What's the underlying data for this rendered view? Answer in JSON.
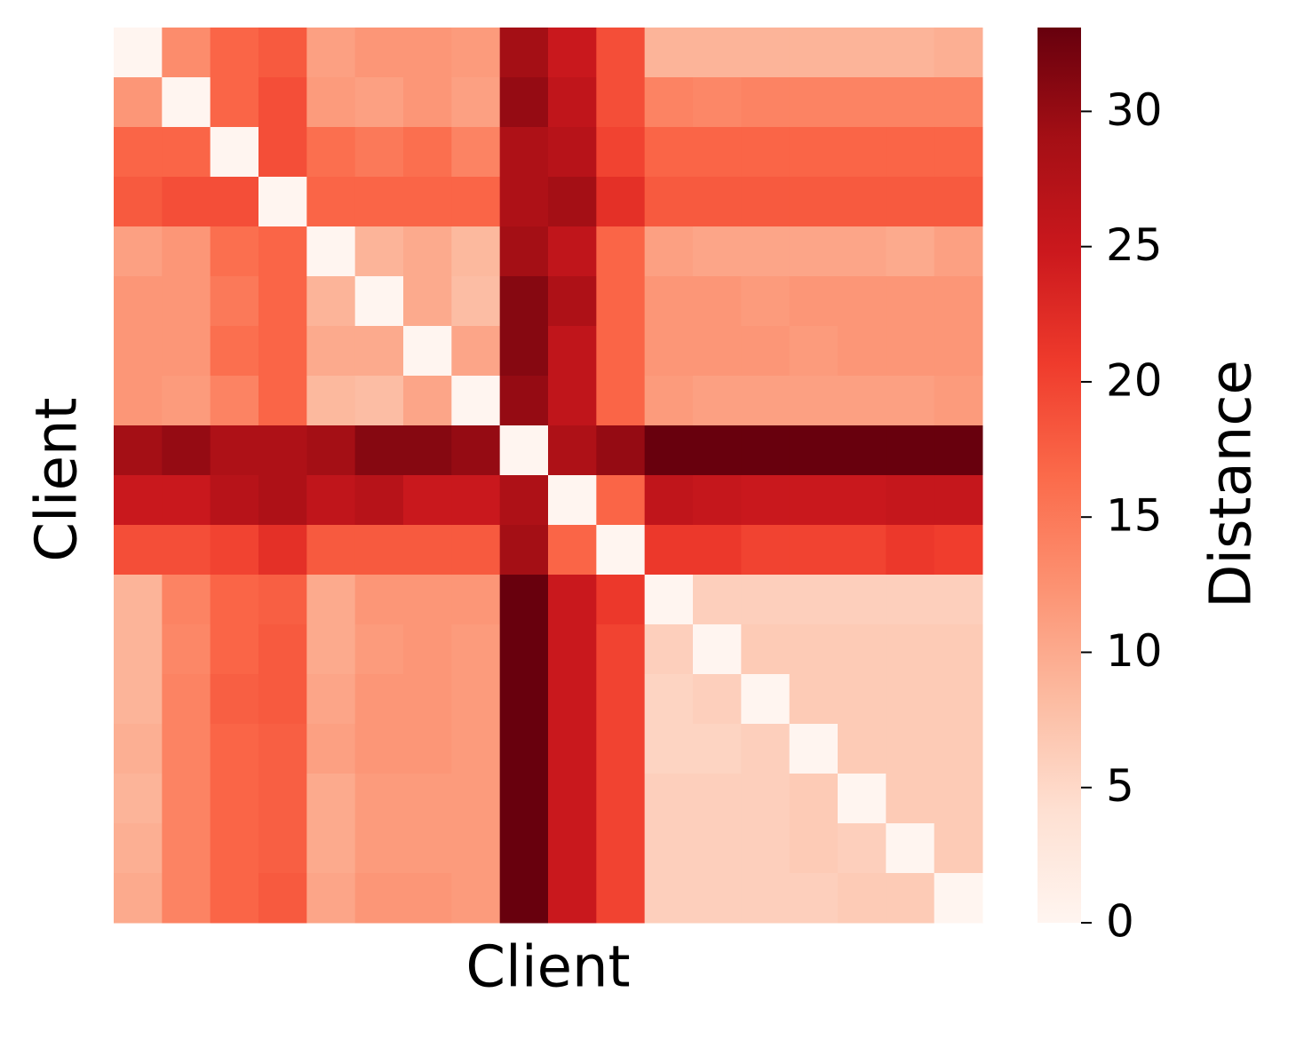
{
  "chart_data": {
    "type": "heatmap",
    "xlabel": "Client",
    "ylabel": "Client",
    "colorbar_label": "Distance",
    "z": [
      [
        0,
        13,
        17,
        18,
        11,
        12,
        12,
        11.5,
        29,
        25,
        19,
        9,
        9,
        9,
        9,
        9,
        9,
        9.5
      ],
      [
        12,
        0,
        17,
        19,
        11.5,
        11,
        12,
        11,
        30,
        26,
        19,
        14,
        13.5,
        14,
        14,
        14,
        14,
        14
      ],
      [
        17,
        17,
        0,
        19,
        16,
        15,
        16,
        14,
        28,
        27,
        20,
        17,
        17,
        17,
        17,
        17,
        17,
        17
      ],
      [
        18,
        19,
        19,
        0,
        17,
        17,
        17,
        17,
        28,
        29,
        22,
        18,
        18,
        18,
        18,
        18,
        18,
        18
      ],
      [
        11,
        12,
        16,
        17,
        0,
        9,
        10,
        8.5,
        29,
        26,
        17,
        11,
        10.5,
        10.5,
        10.5,
        10.5,
        10,
        11
      ],
      [
        12,
        12,
        15,
        17,
        9,
        0,
        10,
        8,
        31,
        28,
        17,
        12,
        12,
        11.5,
        12,
        12,
        12,
        12
      ],
      [
        12,
        12,
        16,
        17,
        10,
        10,
        0,
        10.5,
        31,
        26,
        17,
        12,
        12,
        12,
        11.5,
        12,
        12,
        12
      ],
      [
        12,
        11.5,
        14,
        17,
        8.5,
        8,
        10.5,
        0,
        30,
        26,
        17,
        11.5,
        11,
        11,
        11,
        11,
        11,
        11.5
      ],
      [
        29,
        30,
        28,
        28,
        29,
        31,
        31,
        30,
        0,
        28,
        30,
        33,
        33,
        33,
        33,
        33,
        33,
        33
      ],
      [
        25,
        25,
        27,
        28,
        26,
        27,
        25,
        25,
        28,
        0,
        17,
        26,
        25.5,
        25,
        25,
        25,
        25.5,
        25.5
      ],
      [
        19,
        19,
        20,
        22,
        18,
        18,
        18,
        18,
        29,
        17,
        0,
        21,
        21,
        20,
        20,
        20,
        21,
        20.5
      ],
      [
        9,
        14,
        17,
        17.5,
        10,
        12,
        12,
        12,
        33,
        25,
        21,
        0,
        6,
        6,
        6,
        6,
        6,
        6
      ],
      [
        9,
        13.5,
        17,
        18,
        10,
        11.5,
        12,
        11.5,
        33,
        25,
        20,
        6,
        0,
        6.5,
        6.5,
        6.5,
        6.5,
        6.5
      ],
      [
        9,
        14,
        17.5,
        18,
        10.5,
        12,
        12,
        11.5,
        33,
        25,
        20,
        5.5,
        6,
        0,
        6.5,
        6.5,
        6.5,
        6.5
      ],
      [
        9.5,
        14,
        17,
        17.5,
        11,
        12,
        12,
        11.5,
        33,
        25,
        20,
        5.5,
        5.5,
        6,
        0,
        6.5,
        6.5,
        6.5
      ],
      [
        9,
        14,
        17,
        17.5,
        10,
        11.5,
        11.5,
        11.5,
        33,
        25,
        20,
        6,
        6,
        6,
        6.5,
        0,
        6.5,
        6.5
      ],
      [
        9.5,
        14,
        17,
        17.5,
        10,
        11.5,
        11.5,
        11.5,
        33,
        25,
        20,
        6,
        6,
        6,
        6.5,
        6,
        0,
        6.5
      ],
      [
        10,
        14,
        17,
        18,
        10.5,
        12,
        12,
        11.5,
        33,
        25,
        20,
        6,
        6,
        6,
        6,
        6.5,
        6.5,
        0
      ]
    ],
    "zlim": [
      0,
      33.1
    ],
    "zticks": [
      0,
      5,
      10,
      15,
      20,
      25,
      30
    ],
    "colorscale": [
      "#fff5f0",
      "#fee0d2",
      "#fcbba1",
      "#fc9272",
      "#fb6a4a",
      "#ef3b2c",
      "#cb181d",
      "#a50f15",
      "#67000d"
    ]
  }
}
